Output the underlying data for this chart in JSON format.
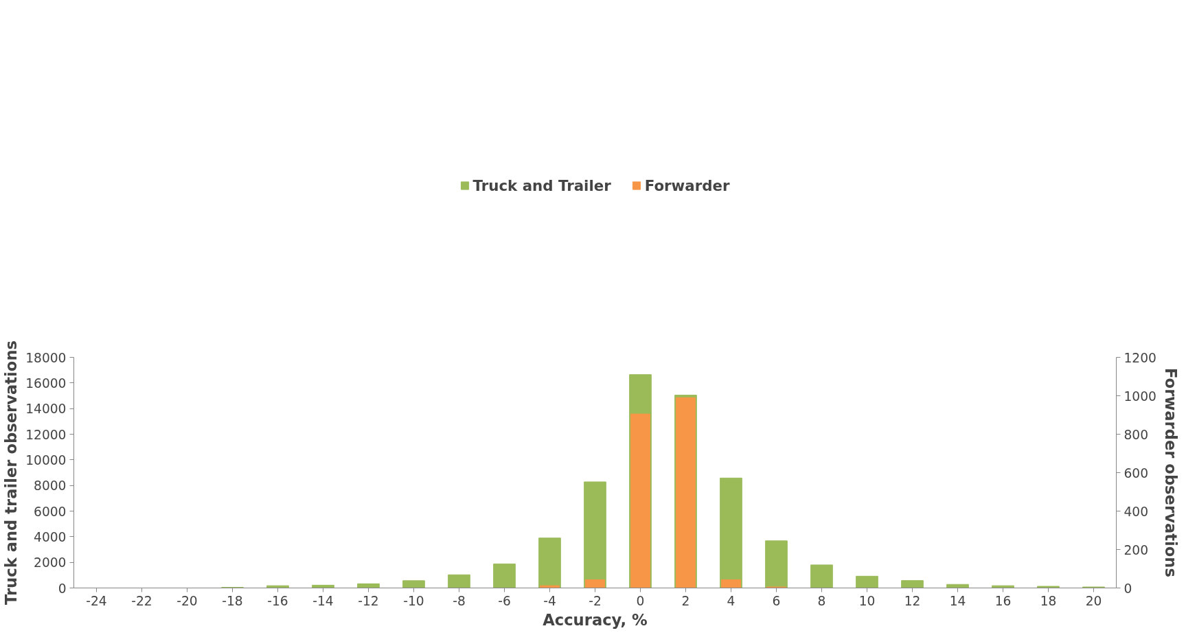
{
  "chart_data": {
    "type": "bar",
    "xlabel": "Accuracy, %",
    "ylabel": "Truck and trailer observations",
    "y2label": "Forwarder observations",
    "categories": [
      "-24",
      "-22",
      "-20",
      "-18",
      "-16",
      "-14",
      "-12",
      "-10",
      "-8",
      "-6",
      "-4",
      "-2",
      "0",
      "2",
      "4",
      "6",
      "8",
      "10",
      "12",
      "14",
      "16",
      "18",
      "20"
    ],
    "series": [
      {
        "name": "Truck and Trailer",
        "color": "#9bbb59",
        "values": [
          0,
          0,
          0,
          50,
          180,
          220,
          330,
          570,
          1030,
          1880,
          3900,
          8280,
          16650,
          15050,
          8580,
          3680,
          1800,
          920,
          580,
          280,
          180,
          130,
          80
        ]
      },
      {
        "name": "Forwarder",
        "color": "#f79646",
        "axis": "y2",
        "values": [
          0,
          0,
          0,
          0,
          0,
          0,
          0,
          0,
          0,
          0,
          12,
          43,
          905,
          990,
          43,
          5,
          0,
          0,
          0,
          0,
          0,
          0,
          0
        ]
      }
    ],
    "ylim": [
      0,
      18000
    ],
    "yticks": [
      0,
      2000,
      4000,
      6000,
      8000,
      10000,
      12000,
      14000,
      16000,
      18000
    ],
    "y2lim": [
      0,
      1200
    ],
    "y2ticks": [
      0,
      200,
      400,
      600,
      800,
      1000,
      1200
    ],
    "grid": false,
    "legend": "top"
  }
}
